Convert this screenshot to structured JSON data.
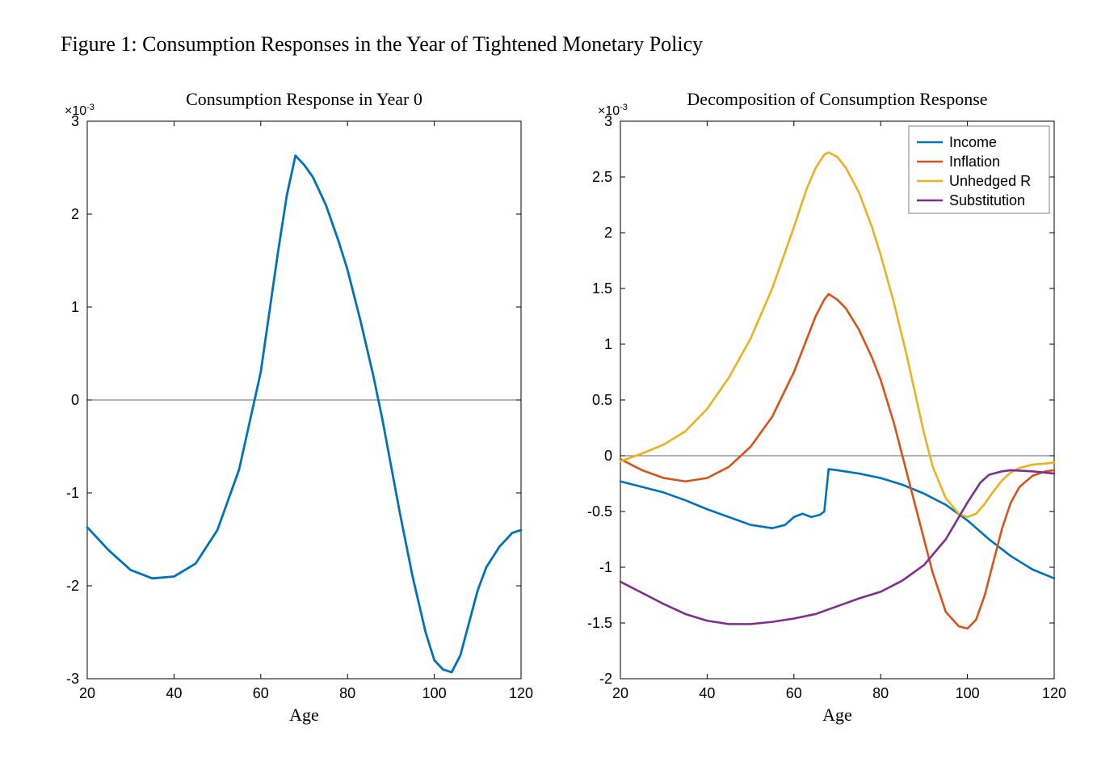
{
  "figure_title": "Figure 1: Consumption Responses in the Year of Tightened Monetary Policy",
  "layout": {
    "panel_count": 2,
    "arrangement": "side-by-side",
    "background_color": "#ffffff"
  },
  "left_chart": {
    "type": "line",
    "title": "Consumption Response in Year 0",
    "title_fontsize": 22,
    "xlabel": "Age",
    "xlabel_fontsize": 22,
    "exponent_label": "×10",
    "exponent_power": "-3",
    "exponent_fontsize": 16,
    "xlim": [
      20,
      120
    ],
    "ylim": [
      -3,
      3
    ],
    "xticks": [
      20,
      40,
      60,
      80,
      100,
      120
    ],
    "yticks": [
      -3,
      -2,
      -1,
      0,
      1,
      2,
      3
    ],
    "axis_fontsize": 18,
    "border_color": "#000000",
    "zero_line_color": "#333333",
    "zero_line_width": 0.8,
    "grid": false,
    "series": [
      {
        "name": "Consumption Response",
        "color": "#0072bd",
        "line_width": 2.8,
        "x": [
          20,
          25,
          30,
          35,
          40,
          45,
          50,
          55,
          60,
          64,
          66,
          68,
          70,
          72,
          75,
          78,
          80,
          83,
          86,
          88,
          90,
          92,
          95,
          98,
          100,
          102,
          104,
          106,
          108,
          110,
          112,
          115,
          118,
          120
        ],
        "y": [
          -1.37,
          -1.62,
          -1.83,
          -1.92,
          -1.9,
          -1.76,
          -1.4,
          -0.75,
          0.3,
          1.6,
          2.2,
          2.63,
          2.53,
          2.4,
          2.1,
          1.7,
          1.4,
          0.85,
          0.25,
          -0.2,
          -0.7,
          -1.2,
          -1.9,
          -2.5,
          -2.8,
          -2.9,
          -2.93,
          -2.75,
          -2.4,
          -2.05,
          -1.8,
          -1.58,
          -1.43,
          -1.4
        ]
      }
    ]
  },
  "right_chart": {
    "type": "line",
    "title": "Decomposition of Consumption Response",
    "title_fontsize": 22,
    "xlabel": "Age",
    "xlabel_fontsize": 22,
    "exponent_label": "×10",
    "exponent_power": "-3",
    "exponent_fontsize": 16,
    "xlim": [
      20,
      120
    ],
    "ylim": [
      -2,
      3
    ],
    "xticks": [
      20,
      40,
      60,
      80,
      100,
      120
    ],
    "yticks": [
      -2,
      -1.5,
      -1,
      -0.5,
      0,
      0.5,
      1,
      1.5,
      2,
      2.5,
      3
    ],
    "axis_fontsize": 18,
    "border_color": "#000000",
    "zero_line_color": "#333333",
    "zero_line_width": 0.8,
    "grid": false,
    "legend": {
      "position": "top-right",
      "border_color": "#7f7f7f",
      "background_color": "#ffffff",
      "fontsize": 18,
      "items": [
        "Income",
        "Inflation",
        "Unhedged R",
        "Substitution"
      ]
    },
    "series": [
      {
        "name": "Income",
        "color": "#0072bd",
        "line_width": 2.6,
        "x": [
          20,
          25,
          30,
          35,
          40,
          45,
          50,
          55,
          58,
          60,
          62,
          64,
          66,
          67,
          68,
          70,
          75,
          80,
          85,
          90,
          95,
          100,
          105,
          110,
          115,
          120
        ],
        "y": [
          -0.23,
          -0.28,
          -0.33,
          -0.4,
          -0.48,
          -0.55,
          -0.62,
          -0.65,
          -0.62,
          -0.55,
          -0.52,
          -0.55,
          -0.53,
          -0.5,
          -0.12,
          -0.13,
          -0.16,
          -0.2,
          -0.26,
          -0.34,
          -0.44,
          -0.58,
          -0.75,
          -0.9,
          -1.02,
          -1.1
        ]
      },
      {
        "name": "Inflation",
        "color": "#d95319",
        "line_width": 2.6,
        "x": [
          20,
          25,
          30,
          35,
          40,
          45,
          50,
          55,
          60,
          63,
          65,
          67,
          68,
          70,
          72,
          75,
          78,
          80,
          83,
          86,
          88,
          90,
          92,
          95,
          98,
          100,
          102,
          104,
          106,
          108,
          110,
          112,
          115,
          118,
          120
        ],
        "y": [
          -0.03,
          -0.13,
          -0.2,
          -0.23,
          -0.2,
          -0.1,
          0.08,
          0.35,
          0.75,
          1.05,
          1.25,
          1.4,
          1.45,
          1.4,
          1.32,
          1.13,
          0.88,
          0.68,
          0.3,
          -0.15,
          -0.45,
          -0.75,
          -1.05,
          -1.4,
          -1.53,
          -1.55,
          -1.47,
          -1.25,
          -0.95,
          -0.65,
          -0.42,
          -0.28,
          -0.18,
          -0.14,
          -0.13
        ]
      },
      {
        "name": "Unhedged R",
        "color": "#edb120",
        "line_width": 2.6,
        "x": [
          20,
          25,
          30,
          35,
          40,
          45,
          50,
          55,
          60,
          63,
          65,
          67,
          68,
          70,
          72,
          75,
          78,
          80,
          83,
          86,
          88,
          90,
          92,
          95,
          98,
          100,
          102,
          104,
          106,
          108,
          110,
          112,
          115,
          118,
          120
        ],
        "y": [
          -0.05,
          0.02,
          0.1,
          0.22,
          0.42,
          0.7,
          1.05,
          1.5,
          2.05,
          2.4,
          2.58,
          2.7,
          2.72,
          2.68,
          2.58,
          2.36,
          2.05,
          1.8,
          1.38,
          0.9,
          0.55,
          0.2,
          -0.1,
          -0.38,
          -0.52,
          -0.55,
          -0.52,
          -0.43,
          -0.32,
          -0.22,
          -0.15,
          -0.11,
          -0.08,
          -0.07,
          -0.06
        ]
      },
      {
        "name": "Substitution",
        "color": "#7e2f8e",
        "line_width": 2.6,
        "x": [
          20,
          25,
          30,
          35,
          40,
          45,
          50,
          55,
          60,
          65,
          70,
          75,
          80,
          85,
          90,
          95,
          100,
          103,
          105,
          108,
          110,
          115,
          120
        ],
        "y": [
          -1.13,
          -1.23,
          -1.33,
          -1.42,
          -1.48,
          -1.51,
          -1.51,
          -1.49,
          -1.46,
          -1.42,
          -1.35,
          -1.28,
          -1.22,
          -1.12,
          -0.98,
          -0.75,
          -0.42,
          -0.24,
          -0.17,
          -0.14,
          -0.13,
          -0.14,
          -0.16
        ]
      }
    ]
  }
}
